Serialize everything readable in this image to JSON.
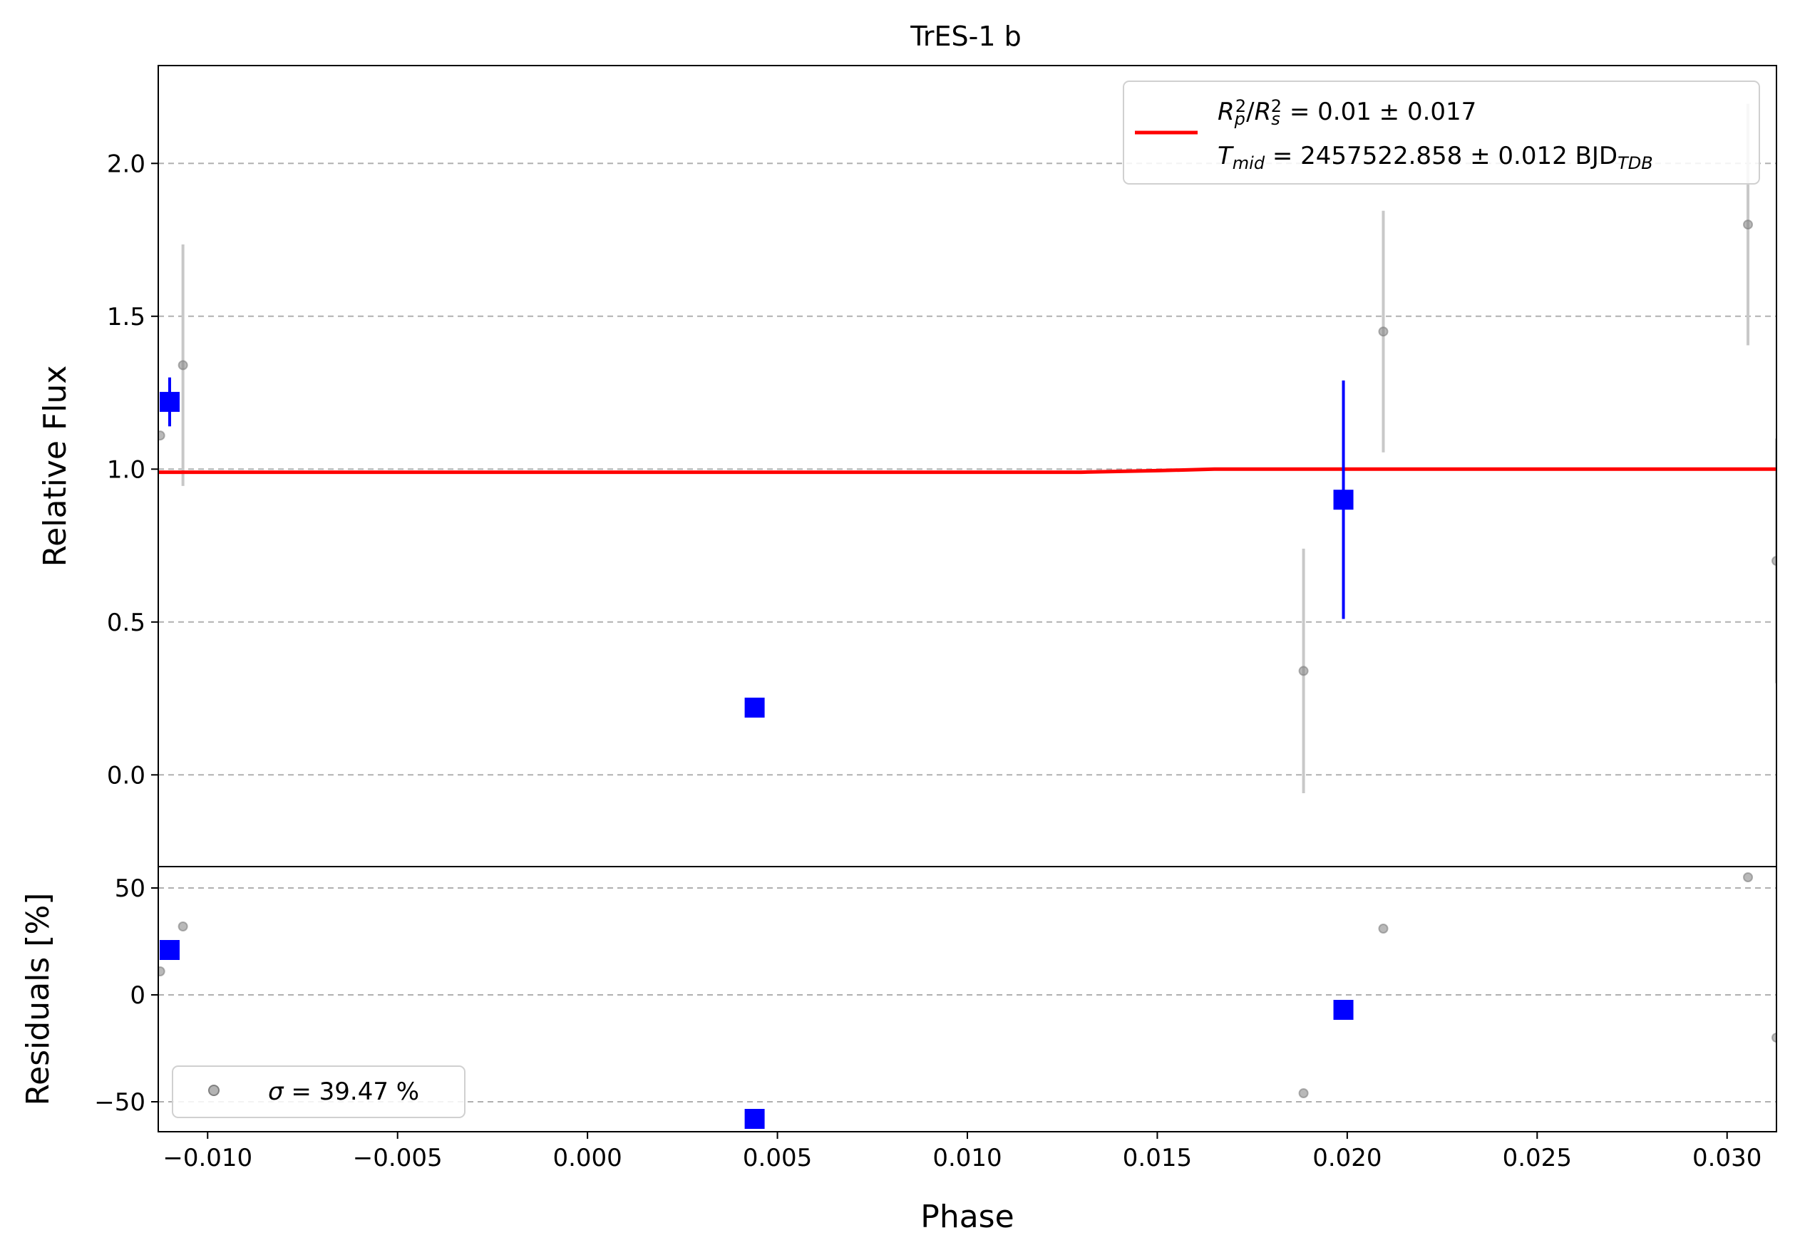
{
  "chart_data": [
    {
      "panel": "main",
      "type": "scatter",
      "title": "TrES-1 b",
      "xlabel": "",
      "ylabel": "Relative Flux",
      "xlim": [
        -0.0113,
        0.0313
      ],
      "ylim": [
        -0.3,
        2.32
      ],
      "yticks": [
        0.0,
        0.5,
        1.0,
        1.5,
        2.0
      ],
      "ytick_labels": [
        "0.0",
        "0.5",
        "1.0",
        "1.5",
        "2.0"
      ],
      "grid": "y dashed",
      "legend_position": "top-right",
      "legend": {
        "rp_sym": "R",
        "rp_sub": "p",
        "rs_sub": "s",
        "sq": "2",
        "slash": "/",
        "rp_value": " = 0.01 ± 0.017",
        "t_sym": "T",
        "t_sub": "mid",
        "t_value": " = 2457522.858 ± 0.012 BJD",
        "t_unit_sub": "TDB"
      },
      "colors": {
        "raw": "#808080",
        "binned": "#0000ff",
        "model": "#ff0000",
        "errorbar_raw": "#c8c8c8",
        "grid": "#b0b0b0"
      },
      "series": [
        {
          "kind": "raw",
          "x": [
            -0.01125,
            -0.01065,
            0.01885,
            0.02095,
            0.03055,
            0.0313
          ],
          "y": [
            1.11,
            1.34,
            0.34,
            1.45,
            1.8,
            0.7
          ],
          "yerr": [
            0.0,
            0.395,
            0.4,
            0.395,
            0.395,
            0.4
          ]
        },
        {
          "kind": "binned",
          "x": [
            -0.011,
            0.0044,
            0.0199
          ],
          "y": [
            1.22,
            0.22,
            0.9
          ],
          "yerr": [
            0.08,
            0.0,
            0.39
          ]
        },
        {
          "kind": "model",
          "x": [
            -0.0113,
            0.013,
            0.015,
            0.0165,
            0.0313
          ],
          "y": [
            0.99,
            0.99,
            0.995,
            1.0,
            1.0
          ]
        }
      ]
    },
    {
      "panel": "residuals",
      "type": "scatter",
      "xlabel": "Phase",
      "ylabel": "Residuals [%]",
      "xlim": [
        -0.0113,
        0.0313
      ],
      "ylim": [
        -64,
        60
      ],
      "yticks": [
        -50,
        0,
        50
      ],
      "ytick_labels": [
        "−50",
        "0",
        "50"
      ],
      "xticks": [
        -0.01,
        -0.005,
        0.0,
        0.005,
        0.01,
        0.015,
        0.02,
        0.025,
        0.03
      ],
      "xtick_labels": [
        "−0.010",
        "−0.005",
        "0.000",
        "0.005",
        "0.010",
        "0.015",
        "0.020",
        "0.025",
        "0.030"
      ],
      "grid": "y dashed",
      "legend_position": "bottom-left",
      "legend": {
        "sigma_sym": "σ",
        "sigma_value": " = 39.47 %"
      },
      "series": [
        {
          "kind": "raw",
          "x": [
            -0.01125,
            -0.01065,
            0.01885,
            0.02095,
            0.03055,
            0.0313
          ],
          "y": [
            11,
            32,
            -46,
            31,
            55,
            -20
          ]
        },
        {
          "kind": "binned",
          "x": [
            -0.011,
            0.0044,
            0.0199
          ],
          "y": [
            21,
            -58,
            -7
          ]
        }
      ]
    }
  ]
}
